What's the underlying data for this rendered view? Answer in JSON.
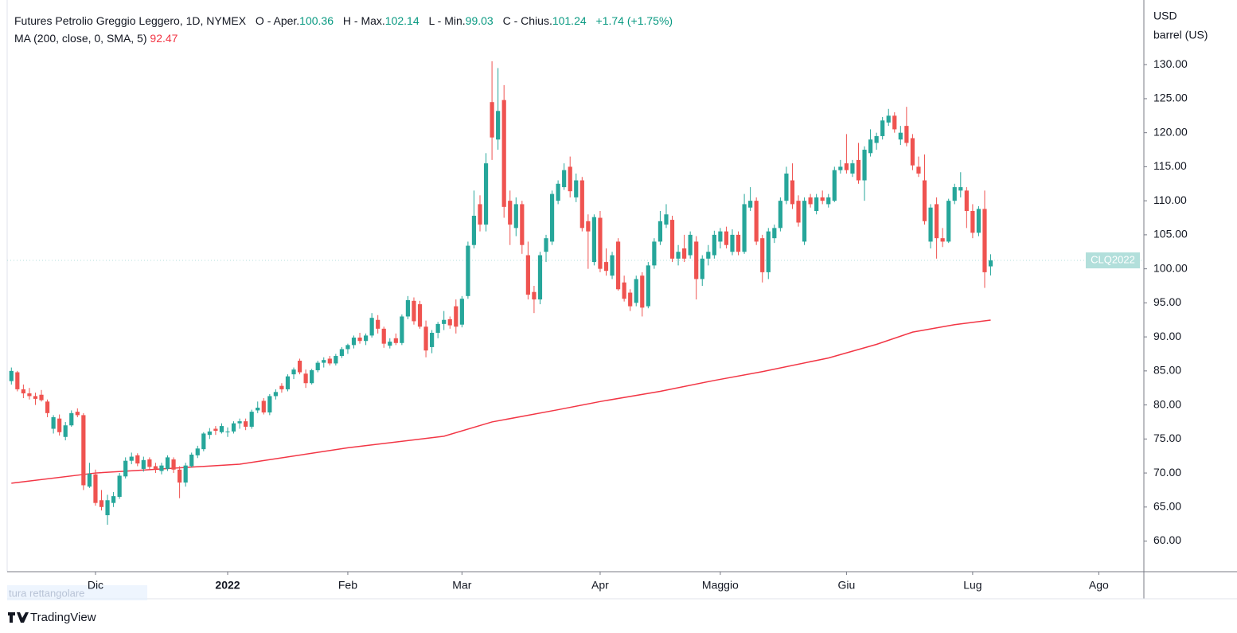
{
  "chart_data": {
    "type": "candlestick",
    "title": "Futures Petrolio Greggio Leggero, 1D, NYMEX",
    "header": {
      "open_label": "O - Aper.",
      "high_label": "H - Max.",
      "low_label": "L - Min.",
      "close_label": "C - Chius.",
      "change": "+1.74",
      "change_pct": "(+1.75%)"
    },
    "up_color": "#26a69a",
    "down_color": "#ef5350",
    "ohlc": [
      [
        83.5,
        85.5,
        83,
        85
      ],
      [
        84.8,
        85,
        82,
        82.3
      ],
      [
        82.3,
        83,
        81,
        81.7
      ],
      [
        81.7,
        82.5,
        80.8,
        81.3
      ],
      [
        81.3,
        81.8,
        80,
        80.9
      ],
      [
        81.5,
        82.2,
        80.5,
        80.7
      ],
      [
        80.5,
        80.8,
        78.2,
        78.8
      ],
      [
        76.5,
        78.5,
        75.8,
        78.2
      ],
      [
        78,
        78.6,
        75.5,
        76
      ],
      [
        75.3,
        77.5,
        74.8,
        77
      ],
      [
        77,
        79.2,
        76.8,
        78.8
      ],
      [
        79,
        79.5,
        78.2,
        78.5
      ],
      [
        78.5,
        78.8,
        67.5,
        68.2
      ],
      [
        68,
        71.5,
        67.8,
        69.9
      ],
      [
        69.8,
        70.5,
        65.2,
        65.6
      ],
      [
        66,
        67.5,
        64.5,
        65
      ],
      [
        63.8,
        66.8,
        62.4,
        66
      ],
      [
        65.6,
        67.2,
        65,
        66.6
      ],
      [
        66.5,
        70,
        66.2,
        69.6
      ],
      [
        69.5,
        72.3,
        69.2,
        71.8
      ],
      [
        71.8,
        73,
        71.3,
        72.4
      ],
      [
        72.6,
        72.9,
        71,
        71.4
      ],
      [
        70.6,
        72.4,
        70.2,
        71.9
      ],
      [
        72,
        72.3,
        70.5,
        70.9
      ],
      [
        71,
        71.5,
        70,
        70.6
      ],
      [
        70.3,
        71.5,
        69.8,
        71.1
      ],
      [
        70.6,
        72.6,
        70.3,
        72.3
      ],
      [
        72,
        72.3,
        70,
        70.5
      ],
      [
        70.5,
        71,
        66.3,
        68.6
      ],
      [
        68.6,
        71.5,
        68,
        71.1
      ],
      [
        71,
        73,
        70.8,
        72.7
      ],
      [
        72.6,
        74,
        72.2,
        73.6
      ],
      [
        73.5,
        76,
        73.2,
        75.8
      ],
      [
        75.6,
        76.6,
        75,
        76.1
      ],
      [
        76.5,
        76.9,
        75.6,
        76.2
      ],
      [
        76,
        77.3,
        75.8,
        76.9
      ],
      [
        76,
        76.7,
        75.3,
        76.1
      ],
      [
        76.1,
        77.6,
        75.8,
        77.3
      ],
      [
        77.3,
        78,
        76.5,
        77.6
      ],
      [
        77.6,
        78,
        76.3,
        76.8
      ],
      [
        76.8,
        79.3,
        76.5,
        79.0
      ],
      [
        79.2,
        80.5,
        78.8,
        79.6
      ],
      [
        80.6,
        81,
        78.6,
        78.9
      ],
      [
        78.9,
        81.6,
        78.5,
        81.3
      ],
      [
        81.3,
        82.3,
        80.8,
        81.9
      ],
      [
        82.8,
        83.2,
        81.8,
        82.3
      ],
      [
        82.3,
        84.5,
        82,
        84.2
      ],
      [
        84.5,
        85.5,
        83.8,
        85.2
      ],
      [
        86.5,
        86.8,
        84.5,
        84.8
      ],
      [
        84.6,
        85.2,
        82.5,
        83.2
      ],
      [
        83.2,
        85.3,
        83,
        85.1
      ],
      [
        85.1,
        86.5,
        84.8,
        86.2
      ],
      [
        86.2,
        87,
        85.5,
        86.6
      ],
      [
        86.8,
        87.2,
        85.8,
        86.1
      ],
      [
        86.1,
        87.5,
        85.8,
        87.2
      ],
      [
        87.2,
        88.5,
        86.9,
        88.2
      ],
      [
        88.2,
        89,
        87.5,
        88.8
      ],
      [
        88.8,
        90.2,
        88.3,
        89.9
      ],
      [
        89.9,
        90.6,
        89,
        89.4
      ],
      [
        89.4,
        90.5,
        88.8,
        90.2
      ],
      [
        90.2,
        93.5,
        89.9,
        92.8
      ],
      [
        92.5,
        93.2,
        90.5,
        91.2
      ],
      [
        91.2,
        91.5,
        88.4,
        89.0
      ],
      [
        88.7,
        89.8,
        88.3,
        89.3
      ],
      [
        89.8,
        90.5,
        88.8,
        89.1
      ],
      [
        89.1,
        93.3,
        88.8,
        93.0
      ],
      [
        93,
        96,
        92.6,
        95.4
      ],
      [
        95.3,
        95.8,
        91.8,
        92.3
      ],
      [
        94.8,
        95.3,
        91.2,
        91.5
      ],
      [
        91.5,
        92.4,
        87,
        88
      ],
      [
        88.5,
        91,
        87.6,
        90.6
      ],
      [
        90.6,
        92.2,
        89.8,
        91.9
      ],
      [
        91.9,
        93.8,
        91,
        92.5
      ],
      [
        92.6,
        93,
        91.2,
        91.7
      ],
      [
        94.5,
        95.5,
        90.5,
        91.5
      ],
      [
        91.8,
        96,
        91.4,
        95.6
      ],
      [
        96,
        104,
        95.6,
        103.4
      ],
      [
        103.5,
        111.5,
        103,
        107.8
      ],
      [
        109.5,
        110.8,
        105.5,
        106.5
      ],
      [
        106.5,
        117,
        105.5,
        115.5
      ],
      [
        124.5,
        130.5,
        116,
        119.3
      ],
      [
        119,
        129.5,
        117.5,
        123.2
      ],
      [
        124.8,
        127,
        107.5,
        109.1
      ],
      [
        110,
        111.5,
        103.5,
        106.5
      ],
      [
        106,
        110.5,
        104.8,
        109.5
      ],
      [
        109.5,
        110,
        102.2,
        103.5
      ],
      [
        102,
        104,
        95.5,
        96.2
      ],
      [
        96.6,
        97.5,
        93.5,
        95.5
      ],
      [
        95.5,
        102.5,
        94.8,
        102
      ],
      [
        102.5,
        105,
        101,
        104.5
      ],
      [
        104,
        111.5,
        103.5,
        111
      ],
      [
        110,
        113,
        109.5,
        112.5
      ],
      [
        112,
        115.5,
        111.6,
        114.5
      ],
      [
        115,
        116.5,
        110.5,
        111.4
      ],
      [
        110.5,
        114,
        109.8,
        113
      ],
      [
        113,
        113.5,
        105.5,
        106
      ],
      [
        107,
        108,
        100,
        105.5
      ],
      [
        101,
        108,
        100.5,
        107.6
      ],
      [
        107.5,
        108.5,
        99.5,
        100
      ],
      [
        101,
        103,
        99,
        99.7
      ],
      [
        99,
        102.5,
        98.5,
        102
      ],
      [
        104,
        104.5,
        96.8,
        97
      ],
      [
        98,
        99,
        95.2,
        95.6
      ],
      [
        96.5,
        97,
        93.8,
        94.5
      ],
      [
        95,
        99,
        94.5,
        98.5
      ],
      [
        99,
        99.5,
        93,
        94.3
      ],
      [
        94.5,
        101,
        94.2,
        100.5
      ],
      [
        100.5,
        104.5,
        100,
        104
      ],
      [
        104,
        108.5,
        103.5,
        107
      ],
      [
        106.5,
        109.5,
        106,
        108
      ],
      [
        107.2,
        107.8,
        101,
        101.5
      ],
      [
        101.5,
        103.5,
        100.5,
        102.5
      ],
      [
        103,
        105,
        101,
        101.5
      ],
      [
        102,
        105.5,
        101.5,
        105
      ],
      [
        104,
        104.8,
        95.5,
        98.5
      ],
      [
        98.5,
        102,
        97.5,
        101.5
      ],
      [
        101.5,
        103.5,
        100.5,
        102.5
      ],
      [
        102,
        105.6,
        101.5,
        105
      ],
      [
        104,
        106,
        103,
        105.5
      ],
      [
        105.5,
        106.2,
        103,
        103.5
      ],
      [
        102.5,
        105.8,
        102,
        105
      ],
      [
        105,
        105.5,
        102,
        102.5
      ],
      [
        102.5,
        111,
        102.2,
        109.5
      ],
      [
        109,
        112,
        108.5,
        110
      ],
      [
        110,
        110.5,
        103.5,
        104
      ],
      [
        104.5,
        105,
        98,
        99.5
      ],
      [
        99.5,
        106,
        98.5,
        105.5
      ],
      [
        104.5,
        106.5,
        103.8,
        106
      ],
      [
        106,
        110.5,
        105.5,
        110
      ],
      [
        110,
        115,
        109.5,
        114
      ],
      [
        113,
        115.5,
        108.8,
        109.5
      ],
      [
        110,
        110.8,
        106.2,
        106.8
      ],
      [
        104,
        110.5,
        103.5,
        110
      ],
      [
        110.5,
        111,
        109,
        109.5
      ],
      [
        108.5,
        111,
        108,
        110.5
      ],
      [
        110.5,
        111.5,
        109.5,
        110
      ],
      [
        109.5,
        111,
        109,
        110.5
      ],
      [
        110,
        115,
        109.8,
        114.5
      ],
      [
        114.5,
        116,
        114,
        115
      ],
      [
        115.5,
        119.8,
        114,
        114.5
      ],
      [
        114,
        116,
        113.5,
        115.5
      ],
      [
        116,
        118.5,
        112.5,
        113
      ],
      [
        113,
        118,
        110,
        117.5
      ],
      [
        117,
        120.5,
        116.5,
        119
      ],
      [
        118.5,
        120,
        117.5,
        119.5
      ],
      [
        119.5,
        122.3,
        119,
        121.8
      ],
      [
        121.5,
        123.5,
        121,
        122.5
      ],
      [
        122.5,
        123,
        120,
        120.5
      ],
      [
        119,
        121,
        118.2,
        120
      ],
      [
        121,
        123.8,
        118,
        118.5
      ],
      [
        119.2,
        119.8,
        114.5,
        115.2
      ],
      [
        115,
        116.5,
        113.5,
        114
      ],
      [
        113,
        116.8,
        106.5,
        107
      ],
      [
        104,
        109.5,
        103,
        109
      ],
      [
        109.5,
        110.5,
        101.5,
        104.5
      ],
      [
        104.5,
        106,
        103.2,
        104
      ],
      [
        104,
        110.3,
        103.8,
        110
      ],
      [
        110,
        112.5,
        109.5,
        112
      ],
      [
        111.5,
        114.2,
        110.5,
        112
      ],
      [
        111.5,
        112,
        106,
        108.5
      ],
      [
        108.5,
        109.5,
        104.5,
        105.3
      ],
      [
        105.3,
        109.2,
        104.8,
        108.8
      ],
      [
        108.8,
        111.5,
        97.2,
        99.5
      ],
      [
        100.36,
        102.14,
        99.03,
        101.24
      ]
    ],
    "ma": {
      "name": "MA (200, close, 0, SMA, 5)",
      "color": "#f23645",
      "x": [
        0,
        14,
        38,
        56,
        72,
        80,
        91,
        98,
        108,
        117,
        125,
        136,
        144,
        150,
        157,
        163
      ],
      "values": [
        68.5,
        70.0,
        71.3,
        73.7,
        75.4,
        77.5,
        79.3,
        80.5,
        82.0,
        83.6,
        84.9,
        86.9,
        88.9,
        90.7,
        91.8,
        92.47
      ]
    },
    "xlim": [
      -0.7,
      188.5
    ],
    "xticks": [
      {
        "value": 14,
        "label": "Dic"
      },
      {
        "value": 36,
        "label": "2022"
      },
      {
        "value": 56,
        "label": "Feb"
      },
      {
        "value": 75,
        "label": "Mar"
      },
      {
        "value": 98,
        "label": "Apr"
      },
      {
        "value": 118,
        "label": "Maggio"
      },
      {
        "value": 139,
        "label": "Giu"
      },
      {
        "value": 160,
        "label": "Lug"
      },
      {
        "value": 181,
        "label": "Ago"
      }
    ],
    "ylim": [
      55.5,
      139.5
    ],
    "yticks": [
      {
        "value": 60,
        "label": "60.00"
      },
      {
        "value": 65,
        "label": "65.00"
      },
      {
        "value": 70,
        "label": "70.00"
      },
      {
        "value": 75,
        "label": "75.00"
      },
      {
        "value": 80,
        "label": "80.00"
      },
      {
        "value": 85,
        "label": "85.00"
      },
      {
        "value": 90,
        "label": "90.00"
      },
      {
        "value": 95,
        "label": "95.00"
      },
      {
        "value": 100,
        "label": "100.00"
      },
      {
        "value": 105,
        "label": "105.00"
      },
      {
        "value": 110,
        "label": "110.00"
      },
      {
        "value": 115,
        "label": "115.00"
      },
      {
        "value": 120,
        "label": "120.00"
      },
      {
        "value": 125,
        "label": "125.00"
      },
      {
        "value": 130,
        "label": "130.00"
      }
    ],
    "y_axis_unit": [
      "USD",
      "barrel (US)"
    ],
    "last_price_label": "CLQ2022",
    "last_price_color": "#b2dfdb",
    "tooltip": "tura rettangolare",
    "brand": "TradingView"
  }
}
